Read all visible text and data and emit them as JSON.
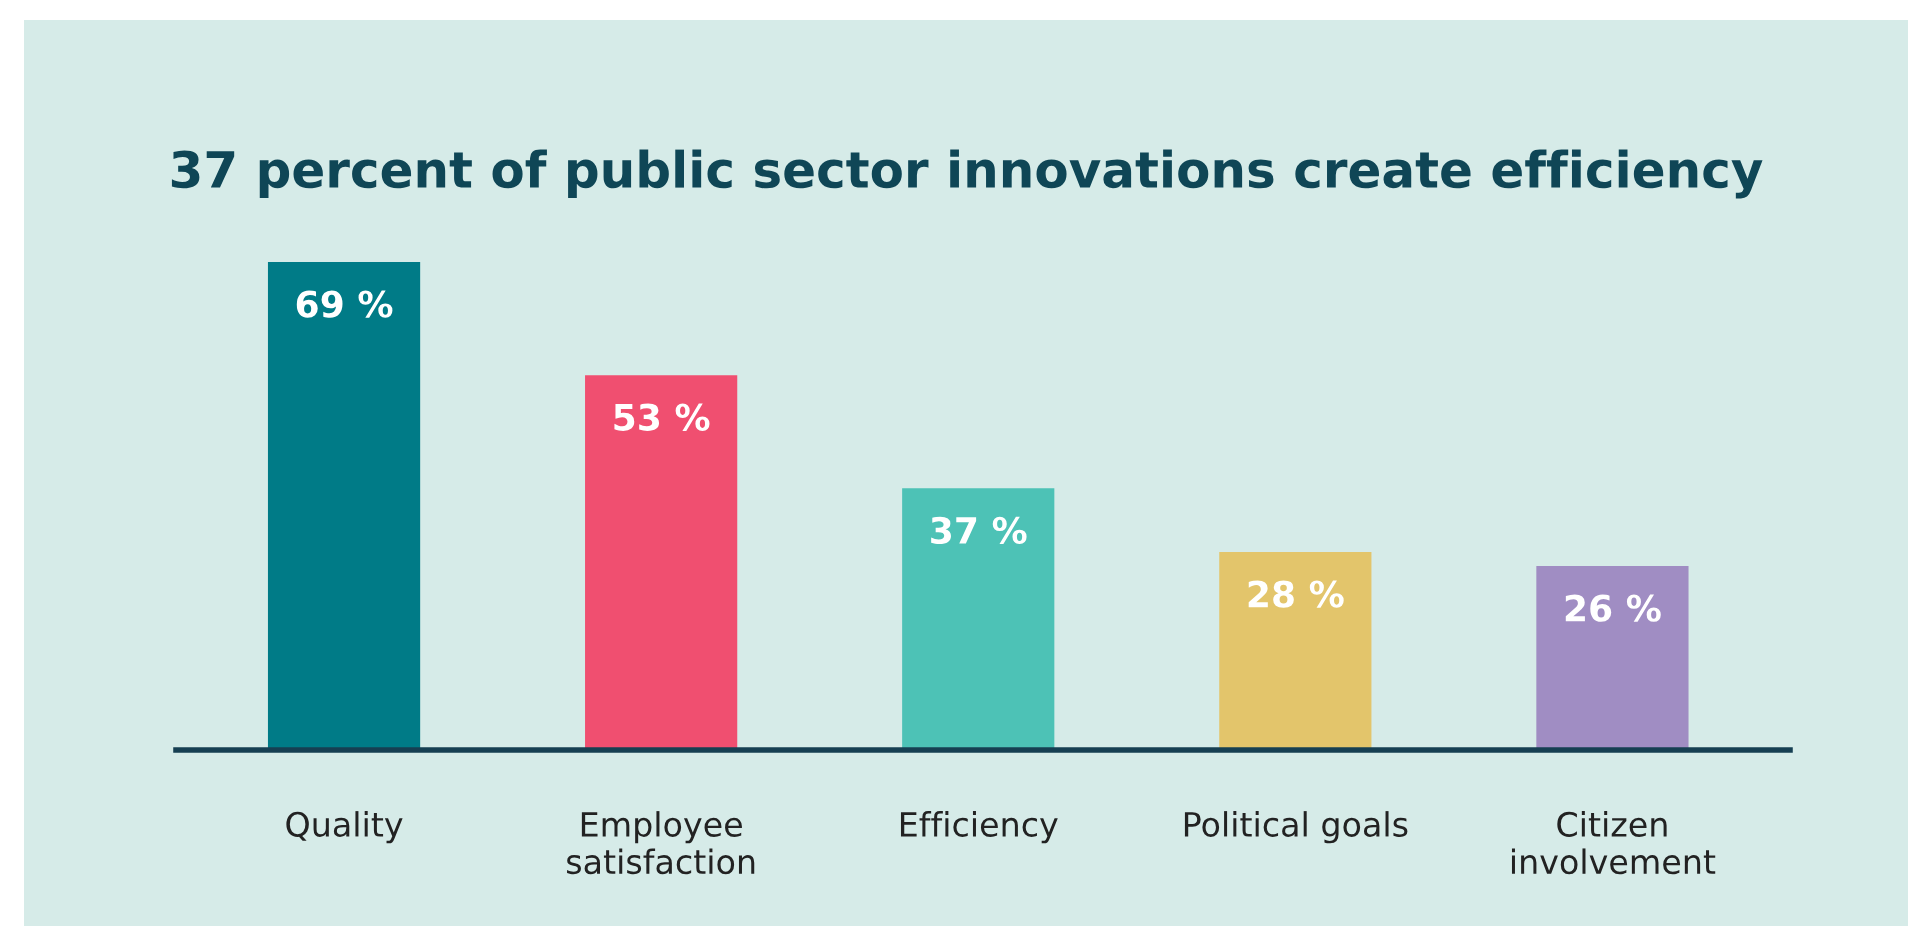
{
  "chart_data": {
    "type": "bar",
    "title": "37 percent of public sector innovations create efficiency",
    "categories": [
      "Quality",
      "Employee\nsatisfaction",
      "Efficiency",
      "Political goals",
      "Citizen\ninvolvement"
    ],
    "values": [
      69,
      53,
      37,
      28,
      26
    ],
    "colors": [
      "#007b87",
      "#f04f70",
      "#4dc2b6",
      "#e3c56b",
      "#a08dc3"
    ],
    "value_labels": [
      "69 %",
      "53 %",
      "37 %",
      "28 %",
      "26 %"
    ],
    "grid": false,
    "legend": false
  }
}
